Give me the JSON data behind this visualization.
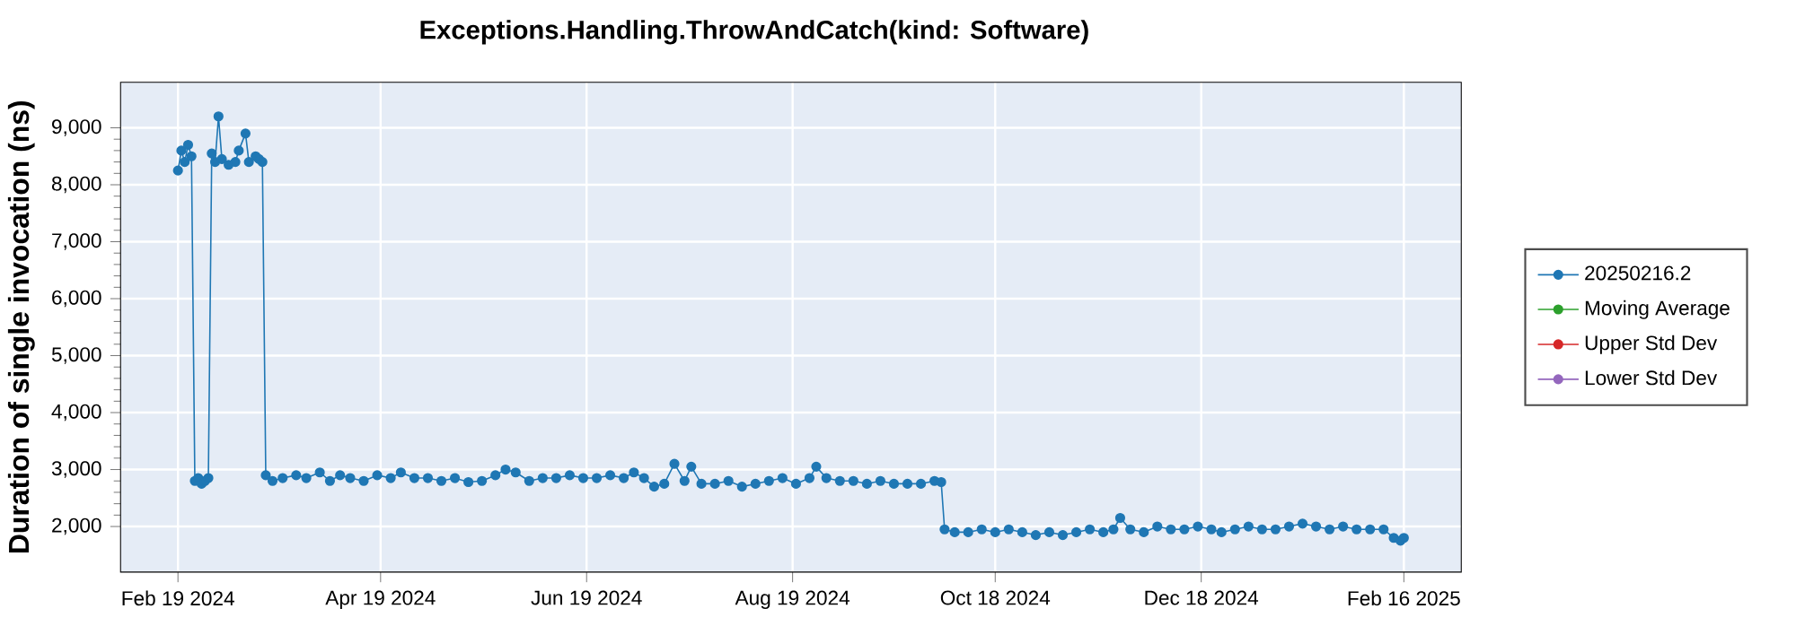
{
  "chart_data": {
    "type": "line",
    "title": "Exceptions.Handling.ThrowAndCatch(kind: Software)",
    "ylabel": "Duration of single invocation (ns)",
    "xlim": [
      "2024-02-02",
      "2025-03-05"
    ],
    "ylim": [
      1200,
      9800
    ],
    "xticks": [
      {
        "value": "2024-02-19",
        "label": "Feb 19 2024"
      },
      {
        "value": "2024-04-19",
        "label": "Apr 19 2024"
      },
      {
        "value": "2024-06-19",
        "label": "Jun 19 2024"
      },
      {
        "value": "2024-08-19",
        "label": "Aug 19 2024"
      },
      {
        "value": "2024-10-18",
        "label": "Oct 18 2024"
      },
      {
        "value": "2024-12-18",
        "label": "Dec 18 2024"
      },
      {
        "value": "2025-02-16",
        "label": "Feb 16 2025"
      }
    ],
    "yticks": [
      {
        "value": 2000,
        "label": "2,000"
      },
      {
        "value": 3000,
        "label": "3,000"
      },
      {
        "value": 4000,
        "label": "4,000"
      },
      {
        "value": 5000,
        "label": "5,000"
      },
      {
        "value": 6000,
        "label": "6,000"
      },
      {
        "value": 7000,
        "label": "7,000"
      },
      {
        "value": 8000,
        "label": "8,000"
      },
      {
        "value": 9000,
        "label": "9,000"
      }
    ],
    "grid": true,
    "legend": "right",
    "marker": "circle",
    "line_style": "solid",
    "series": [
      {
        "name": "20250216.2",
        "color": "#1f77b4",
        "x": [
          "2024-02-19",
          "2024-02-20",
          "2024-02-21",
          "2024-02-22",
          "2024-02-23",
          "2024-02-24",
          "2024-02-25",
          "2024-02-26",
          "2024-02-27",
          "2024-02-28",
          "2024-02-29",
          "2024-03-01",
          "2024-03-02",
          "2024-03-03",
          "2024-03-05",
          "2024-03-07",
          "2024-03-08",
          "2024-03-10",
          "2024-03-11",
          "2024-03-13",
          "2024-03-14",
          "2024-03-15",
          "2024-03-16",
          "2024-03-18",
          "2024-03-21",
          "2024-03-25",
          "2024-03-28",
          "2024-04-01",
          "2024-04-04",
          "2024-04-07",
          "2024-04-10",
          "2024-04-14",
          "2024-04-18",
          "2024-04-22",
          "2024-04-25",
          "2024-04-29",
          "2024-05-03",
          "2024-05-07",
          "2024-05-11",
          "2024-05-15",
          "2024-05-19",
          "2024-05-23",
          "2024-05-26",
          "2024-05-29",
          "2024-06-02",
          "2024-06-06",
          "2024-06-10",
          "2024-06-14",
          "2024-06-18",
          "2024-06-22",
          "2024-06-26",
          "2024-06-30",
          "2024-07-03",
          "2024-07-06",
          "2024-07-09",
          "2024-07-12",
          "2024-07-15",
          "2024-07-18",
          "2024-07-20",
          "2024-07-23",
          "2024-07-27",
          "2024-07-31",
          "2024-08-04",
          "2024-08-08",
          "2024-08-12",
          "2024-08-16",
          "2024-08-20",
          "2024-08-24",
          "2024-08-26",
          "2024-08-29",
          "2024-09-02",
          "2024-09-06",
          "2024-09-10",
          "2024-09-14",
          "2024-09-18",
          "2024-09-22",
          "2024-09-26",
          "2024-09-30",
          "2024-10-02",
          "2024-10-03",
          "2024-10-06",
          "2024-10-10",
          "2024-10-14",
          "2024-10-18",
          "2024-10-22",
          "2024-10-26",
          "2024-10-30",
          "2024-11-03",
          "2024-11-07",
          "2024-11-11",
          "2024-11-15",
          "2024-11-19",
          "2024-11-22",
          "2024-11-24",
          "2024-11-27",
          "2024-12-01",
          "2024-12-05",
          "2024-12-09",
          "2024-12-13",
          "2024-12-17",
          "2024-12-21",
          "2024-12-24",
          "2024-12-28",
          "2025-01-01",
          "2025-01-05",
          "2025-01-09",
          "2025-01-13",
          "2025-01-17",
          "2025-01-21",
          "2025-01-25",
          "2025-01-29",
          "2025-02-02",
          "2025-02-06",
          "2025-02-10",
          "2025-02-13",
          "2025-02-15",
          "2025-02-16"
        ],
        "values": [
          8250,
          8600,
          8400,
          8700,
          8500,
          2800,
          2850,
          2750,
          2800,
          2850,
          8550,
          8400,
          9200,
          8450,
          8350,
          8400,
          8600,
          8900,
          8400,
          8500,
          8450,
          8400,
          2900,
          2800,
          2850,
          2900,
          2850,
          2950,
          2800,
          2900,
          2850,
          2800,
          2900,
          2850,
          2950,
          2850,
          2850,
          2800,
          2850,
          2780,
          2800,
          2900,
          3000,
          2950,
          2800,
          2850,
          2850,
          2900,
          2850,
          2850,
          2900,
          2850,
          2950,
          2850,
          2700,
          2750,
          3100,
          2800,
          3050,
          2750,
          2750,
          2800,
          2700,
          2750,
          2800,
          2850,
          2750,
          2850,
          3050,
          2850,
          2800,
          2800,
          2750,
          2800,
          2750,
          2750,
          2750,
          2800,
          2780,
          1950,
          1900,
          1900,
          1950,
          1900,
          1950,
          1900,
          1850,
          1900,
          1850,
          1900,
          1950,
          1900,
          1950,
          2150,
          1950,
          1900,
          2000,
          1950,
          1950,
          2000,
          1950,
          1900,
          1950,
          2000,
          1950,
          1950,
          2000,
          2050,
          2000,
          1950,
          2000,
          1950,
          1950,
          1950,
          1800,
          1750,
          1800
        ]
      },
      {
        "name": "Moving Average",
        "color": "#2ca02c"
      },
      {
        "name": "Upper Std Dev",
        "color": "#d62728"
      },
      {
        "name": "Lower Std Dev",
        "color": "#9467bd"
      }
    ]
  }
}
